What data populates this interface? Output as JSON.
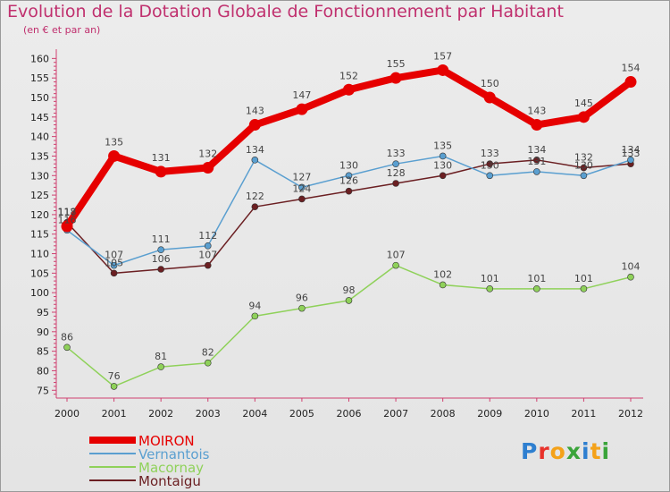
{
  "title": "Evolution de la Dotation Globale de Fonctionnement par Habitant",
  "subtitle": "(en € et par an)",
  "logo": {
    "letters": [
      "P",
      "r",
      "o",
      "x",
      "i",
      "t",
      "i"
    ],
    "colors": [
      "#2e7fd0",
      "#e8322b",
      "#f4a21a",
      "#3aa43a",
      "#2e7fd0",
      "#f4a21a",
      "#3aa43a"
    ]
  },
  "chart_data": {
    "type": "line",
    "x": [
      "2000",
      "2001",
      "2002",
      "2003",
      "2004",
      "2005",
      "2006",
      "2007",
      "2008",
      "2009",
      "2010",
      "2011",
      "2012"
    ],
    "ylim": [
      73,
      161
    ],
    "yticks": [
      75,
      80,
      85,
      90,
      95,
      100,
      105,
      110,
      115,
      120,
      125,
      130,
      135,
      140,
      145,
      150,
      155,
      160
    ],
    "grid": false,
    "legend_position": "bottom-left",
    "series": [
      {
        "name": "Montaigu",
        "color": "#6b1f22",
        "values": [
          118,
          105,
          106,
          107,
          122,
          124,
          126,
          128,
          130,
          133,
          134,
          132,
          133
        ]
      },
      {
        "name": "Macornay",
        "color": "#8fd15a",
        "values": [
          86,
          76,
          81,
          82,
          94,
          96,
          98,
          107,
          102,
          101,
          101,
          101,
          104
        ]
      },
      {
        "name": "Vernantois",
        "color": "#5a9fd0",
        "values": [
          116,
          107,
          111,
          112,
          134,
          127,
          130,
          133,
          135,
          130,
          131,
          130,
          134
        ]
      },
      {
        "name": "MOIRON",
        "color": "#e60000",
        "values": [
          117,
          135,
          131,
          132,
          143,
          147,
          152,
          155,
          157,
          150,
          143,
          145,
          154
        ]
      }
    ]
  }
}
